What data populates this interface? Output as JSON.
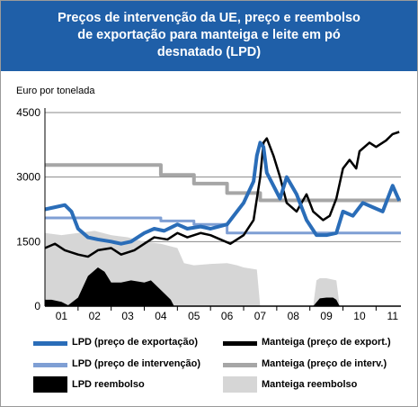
{
  "header": {
    "title_line1": "Preços de intervenção da UE, preço e reembolso",
    "title_line2": "de exportação para manteiga e leite em pó",
    "title_line3": "desnatado (LPD)"
  },
  "colors": {
    "header_bg": "#1f5fa8",
    "lpd_export": "#2a6db8",
    "manteiga_export": "#000000",
    "lpd_interv": "#7f9fd4",
    "manteiga_interv": "#a6a6a6",
    "lpd_reembolso": "#000000",
    "manteiga_reembolso": "#d6d6d6"
  },
  "chart_data": {
    "type": "line",
    "ylabel": "Euro por tonelada",
    "xlabel": "",
    "ylim": [
      0,
      4500
    ],
    "yticks": [
      "4500",
      "3000",
      "1500",
      "0"
    ],
    "yticks_values": [
      4500,
      3000,
      1500,
      0
    ],
    "x_range": [
      2001.0,
      2011.75
    ],
    "x_ticks": [
      "01",
      "02",
      "03",
      "04",
      "05",
      "06",
      "07",
      "08",
      "09",
      "10",
      "11"
    ],
    "x_ticks_values": [
      2001.5,
      2002.5,
      2003.5,
      2004.5,
      2005.5,
      2006.5,
      2007.5,
      2008.5,
      2009.5,
      2010.5,
      2011.5
    ],
    "grid": "horizontal",
    "legend_position": "bottom",
    "series": [
      {
        "key": "manteiga_reembolso",
        "name": "Manteiga reembolso",
        "kind": "area",
        "x": [
          2001.0,
          2001.5,
          2002.0,
          2002.5,
          2003.0,
          2003.5,
          2004.0,
          2004.5,
          2005.0,
          2005.2,
          2005.5,
          2006.0,
          2006.5,
          2006.8,
          2007.0,
          2007.4,
          2007.5,
          2009.1,
          2009.2,
          2009.3,
          2009.5,
          2009.8,
          2009.9
        ],
        "y": [
          1700,
          1650,
          1700,
          1750,
          1650,
          1600,
          1500,
          1450,
          1350,
          1000,
          950,
          980,
          1000,
          950,
          900,
          850,
          0,
          0,
          600,
          650,
          650,
          600,
          0
        ]
      },
      {
        "key": "lpd_reembolso",
        "name": "LPD reembolso",
        "kind": "area",
        "x": [
          2001.0,
          2001.2,
          2001.5,
          2001.7,
          2002.0,
          2002.3,
          2002.6,
          2002.8,
          2003.0,
          2003.3,
          2003.6,
          2004.0,
          2004.2,
          2004.4,
          2004.6,
          2004.8,
          2004.9,
          2009.1,
          2009.3,
          2009.5,
          2009.7,
          2009.8,
          2009.9
        ],
        "y": [
          150,
          150,
          100,
          20,
          200,
          700,
          900,
          800,
          550,
          550,
          600,
          550,
          600,
          450,
          300,
          150,
          0,
          0,
          180,
          200,
          200,
          150,
          0
        ]
      },
      {
        "key": "manteiga_interv",
        "name": "Manteiga (preço de interv.)",
        "kind": "line",
        "x": [
          2001.0,
          2004.5,
          2004.5,
          2005.5,
          2005.5,
          2006.5,
          2006.5,
          2007.5,
          2007.5,
          2011.75
        ],
        "y": [
          3280,
          3280,
          3050,
          3050,
          2850,
          2850,
          2630,
          2630,
          2460,
          2460
        ]
      },
      {
        "key": "lpd_interv",
        "name": "LPD (preço de intervenção)",
        "kind": "line",
        "x": [
          2001.0,
          2004.5,
          2004.5,
          2005.5,
          2005.5,
          2006.5,
          2006.5,
          2011.75
        ],
        "y": [
          2050,
          2050,
          1980,
          1980,
          1900,
          1900,
          1700,
          1700
        ]
      },
      {
        "key": "manteiga_export",
        "name": "Manteiga (preço de export.)",
        "kind": "line",
        "x": [
          2001.0,
          2001.3,
          2001.6,
          2002.0,
          2002.3,
          2002.6,
          2003.0,
          2003.3,
          2003.7,
          2004.0,
          2004.3,
          2004.7,
          2005.0,
          2005.3,
          2005.7,
          2006.0,
          2006.3,
          2006.6,
          2007.0,
          2007.3,
          2007.5,
          2007.6,
          2007.7,
          2007.9,
          2008.1,
          2008.3,
          2008.6,
          2008.9,
          2009.1,
          2009.4,
          2009.6,
          2009.8,
          2010.0,
          2010.2,
          2010.4,
          2010.5,
          2010.8,
          2011.0,
          2011.3,
          2011.5,
          2011.7
        ],
        "y": [
          1350,
          1450,
          1300,
          1200,
          1150,
          1300,
          1350,
          1200,
          1300,
          1450,
          1600,
          1550,
          1700,
          1600,
          1700,
          1650,
          1550,
          1450,
          1650,
          2000,
          3000,
          3800,
          3900,
          3500,
          3000,
          2400,
          2200,
          2600,
          2200,
          2000,
          2100,
          2500,
          3200,
          3400,
          3200,
          3600,
          3800,
          3700,
          3850,
          4000,
          4050
        ]
      },
      {
        "key": "lpd_export",
        "name": "LPD (preço de exportação)",
        "kind": "line",
        "x": [
          2001.0,
          2001.3,
          2001.6,
          2001.8,
          2002.0,
          2002.3,
          2002.6,
          2003.0,
          2003.3,
          2003.6,
          2004.0,
          2004.3,
          2004.6,
          2005.0,
          2005.3,
          2005.7,
          2006.0,
          2006.5,
          2006.8,
          2007.0,
          2007.3,
          2007.4,
          2007.5,
          2007.6,
          2007.7,
          2007.9,
          2008.1,
          2008.3,
          2008.6,
          2008.9,
          2009.2,
          2009.5,
          2009.8,
          2010.0,
          2010.3,
          2010.6,
          2010.9,
          2011.2,
          2011.5,
          2011.7
        ],
        "y": [
          2250,
          2300,
          2350,
          2200,
          1800,
          1600,
          1550,
          1500,
          1450,
          1500,
          1700,
          1800,
          1750,
          1900,
          1800,
          1850,
          1800,
          1900,
          2200,
          2400,
          2900,
          3500,
          3800,
          3700,
          3100,
          2800,
          2500,
          3000,
          2600,
          2000,
          1650,
          1650,
          1700,
          2200,
          2100,
          2400,
          2300,
          2200,
          2800,
          2450
        ]
      }
    ]
  },
  "legend": [
    {
      "key": "lpd_export",
      "label": "LPD (preço de exportação)",
      "style": "line"
    },
    {
      "key": "manteiga_export",
      "label": "Manteiga (preço de export.)",
      "style": "line"
    },
    {
      "key": "lpd_interv",
      "label": "LPD (preço de intervenção)",
      "style": "line"
    },
    {
      "key": "manteiga_interv",
      "label": "Manteiga (preço de interv.)",
      "style": "line"
    },
    {
      "key": "lpd_reembolso",
      "label": "LPD reembolso",
      "style": "box"
    },
    {
      "key": "manteiga_reembolso",
      "label": "Manteiga reembolso",
      "style": "box"
    }
  ]
}
